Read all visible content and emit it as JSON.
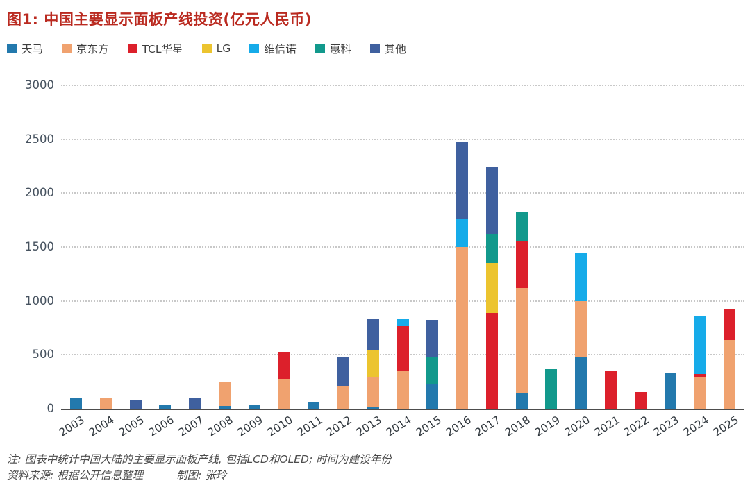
{
  "title": "图1: 中国主要显示面板产线投资(亿元人民币)",
  "chart_data": {
    "type": "bar",
    "stacked": true,
    "title": "图1: 中国主要显示面板产线投资(亿元人民币)",
    "xlabel": "",
    "ylabel": "",
    "ylim": [
      0,
      3000
    ],
    "yticks": [
      0,
      500,
      1000,
      1500,
      2000,
      2500,
      3000
    ],
    "grid": "horizontal-dotted",
    "legend_position": "top-left",
    "categories": [
      "2003",
      "2004",
      "2005",
      "2006",
      "2007",
      "2008",
      "2009",
      "2010",
      "2011",
      "2012",
      "2013",
      "2014",
      "2015",
      "2016",
      "2017",
      "2018",
      "2019",
      "2020",
      "2021",
      "2022",
      "2023",
      "2024",
      "2025"
    ],
    "series": [
      {
        "name": "天马",
        "color": "#2379AD",
        "values": [
          100,
          0,
          0,
          30,
          0,
          25,
          35,
          0,
          65,
          0,
          20,
          0,
          235,
          0,
          0,
          140,
          0,
          480,
          0,
          0,
          330,
          0,
          0
        ]
      },
      {
        "name": "京东方",
        "color": "#F0A26F",
        "values": [
          0,
          105,
          0,
          0,
          0,
          220,
          0,
          280,
          0,
          215,
          275,
          355,
          0,
          1500,
          0,
          980,
          0,
          520,
          0,
          0,
          0,
          295,
          635
        ]
      },
      {
        "name": "TCL华星",
        "color": "#DC202B",
        "values": [
          0,
          0,
          0,
          0,
          0,
          0,
          0,
          250,
          0,
          0,
          0,
          410,
          0,
          0,
          890,
          430,
          0,
          0,
          350,
          155,
          0,
          25,
          290
        ]
      },
      {
        "name": "LG",
        "color": "#ECC42F",
        "values": [
          0,
          0,
          0,
          0,
          0,
          0,
          0,
          0,
          0,
          0,
          245,
          0,
          0,
          0,
          460,
          0,
          0,
          0,
          0,
          0,
          0,
          0,
          0
        ]
      },
      {
        "name": "维信诺",
        "color": "#16ABE9",
        "values": [
          0,
          0,
          0,
          0,
          0,
          0,
          0,
          0,
          0,
          0,
          0,
          65,
          0,
          265,
          0,
          0,
          0,
          450,
          0,
          0,
          0,
          540,
          0
        ]
      },
      {
        "name": "惠科",
        "color": "#12998C",
        "values": [
          0,
          0,
          0,
          0,
          0,
          0,
          0,
          0,
          0,
          0,
          0,
          0,
          240,
          0,
          270,
          280,
          370,
          0,
          0,
          0,
          0,
          0,
          0
        ]
      },
      {
        "name": "其他",
        "color": "#3F609F",
        "values": [
          0,
          0,
          75,
          0,
          95,
          0,
          0,
          0,
          0,
          265,
          300,
          0,
          350,
          715,
          620,
          0,
          0,
          0,
          0,
          0,
          0,
          0,
          0
        ]
      }
    ]
  },
  "notes": {
    "line1": "注: 图表中统计中国大陆的主要显示面板产线, 包括LCD和OLED; 时间为建设年份",
    "source": "资料来源: 根据公开信息整理",
    "credit": "制图: 张玲"
  },
  "colors": {
    "title": "#BA2A20",
    "axis": "#4d4d4d",
    "grid": "#c8c8c8",
    "tick_label": "#46525f",
    "note": "#4c4c4c"
  }
}
